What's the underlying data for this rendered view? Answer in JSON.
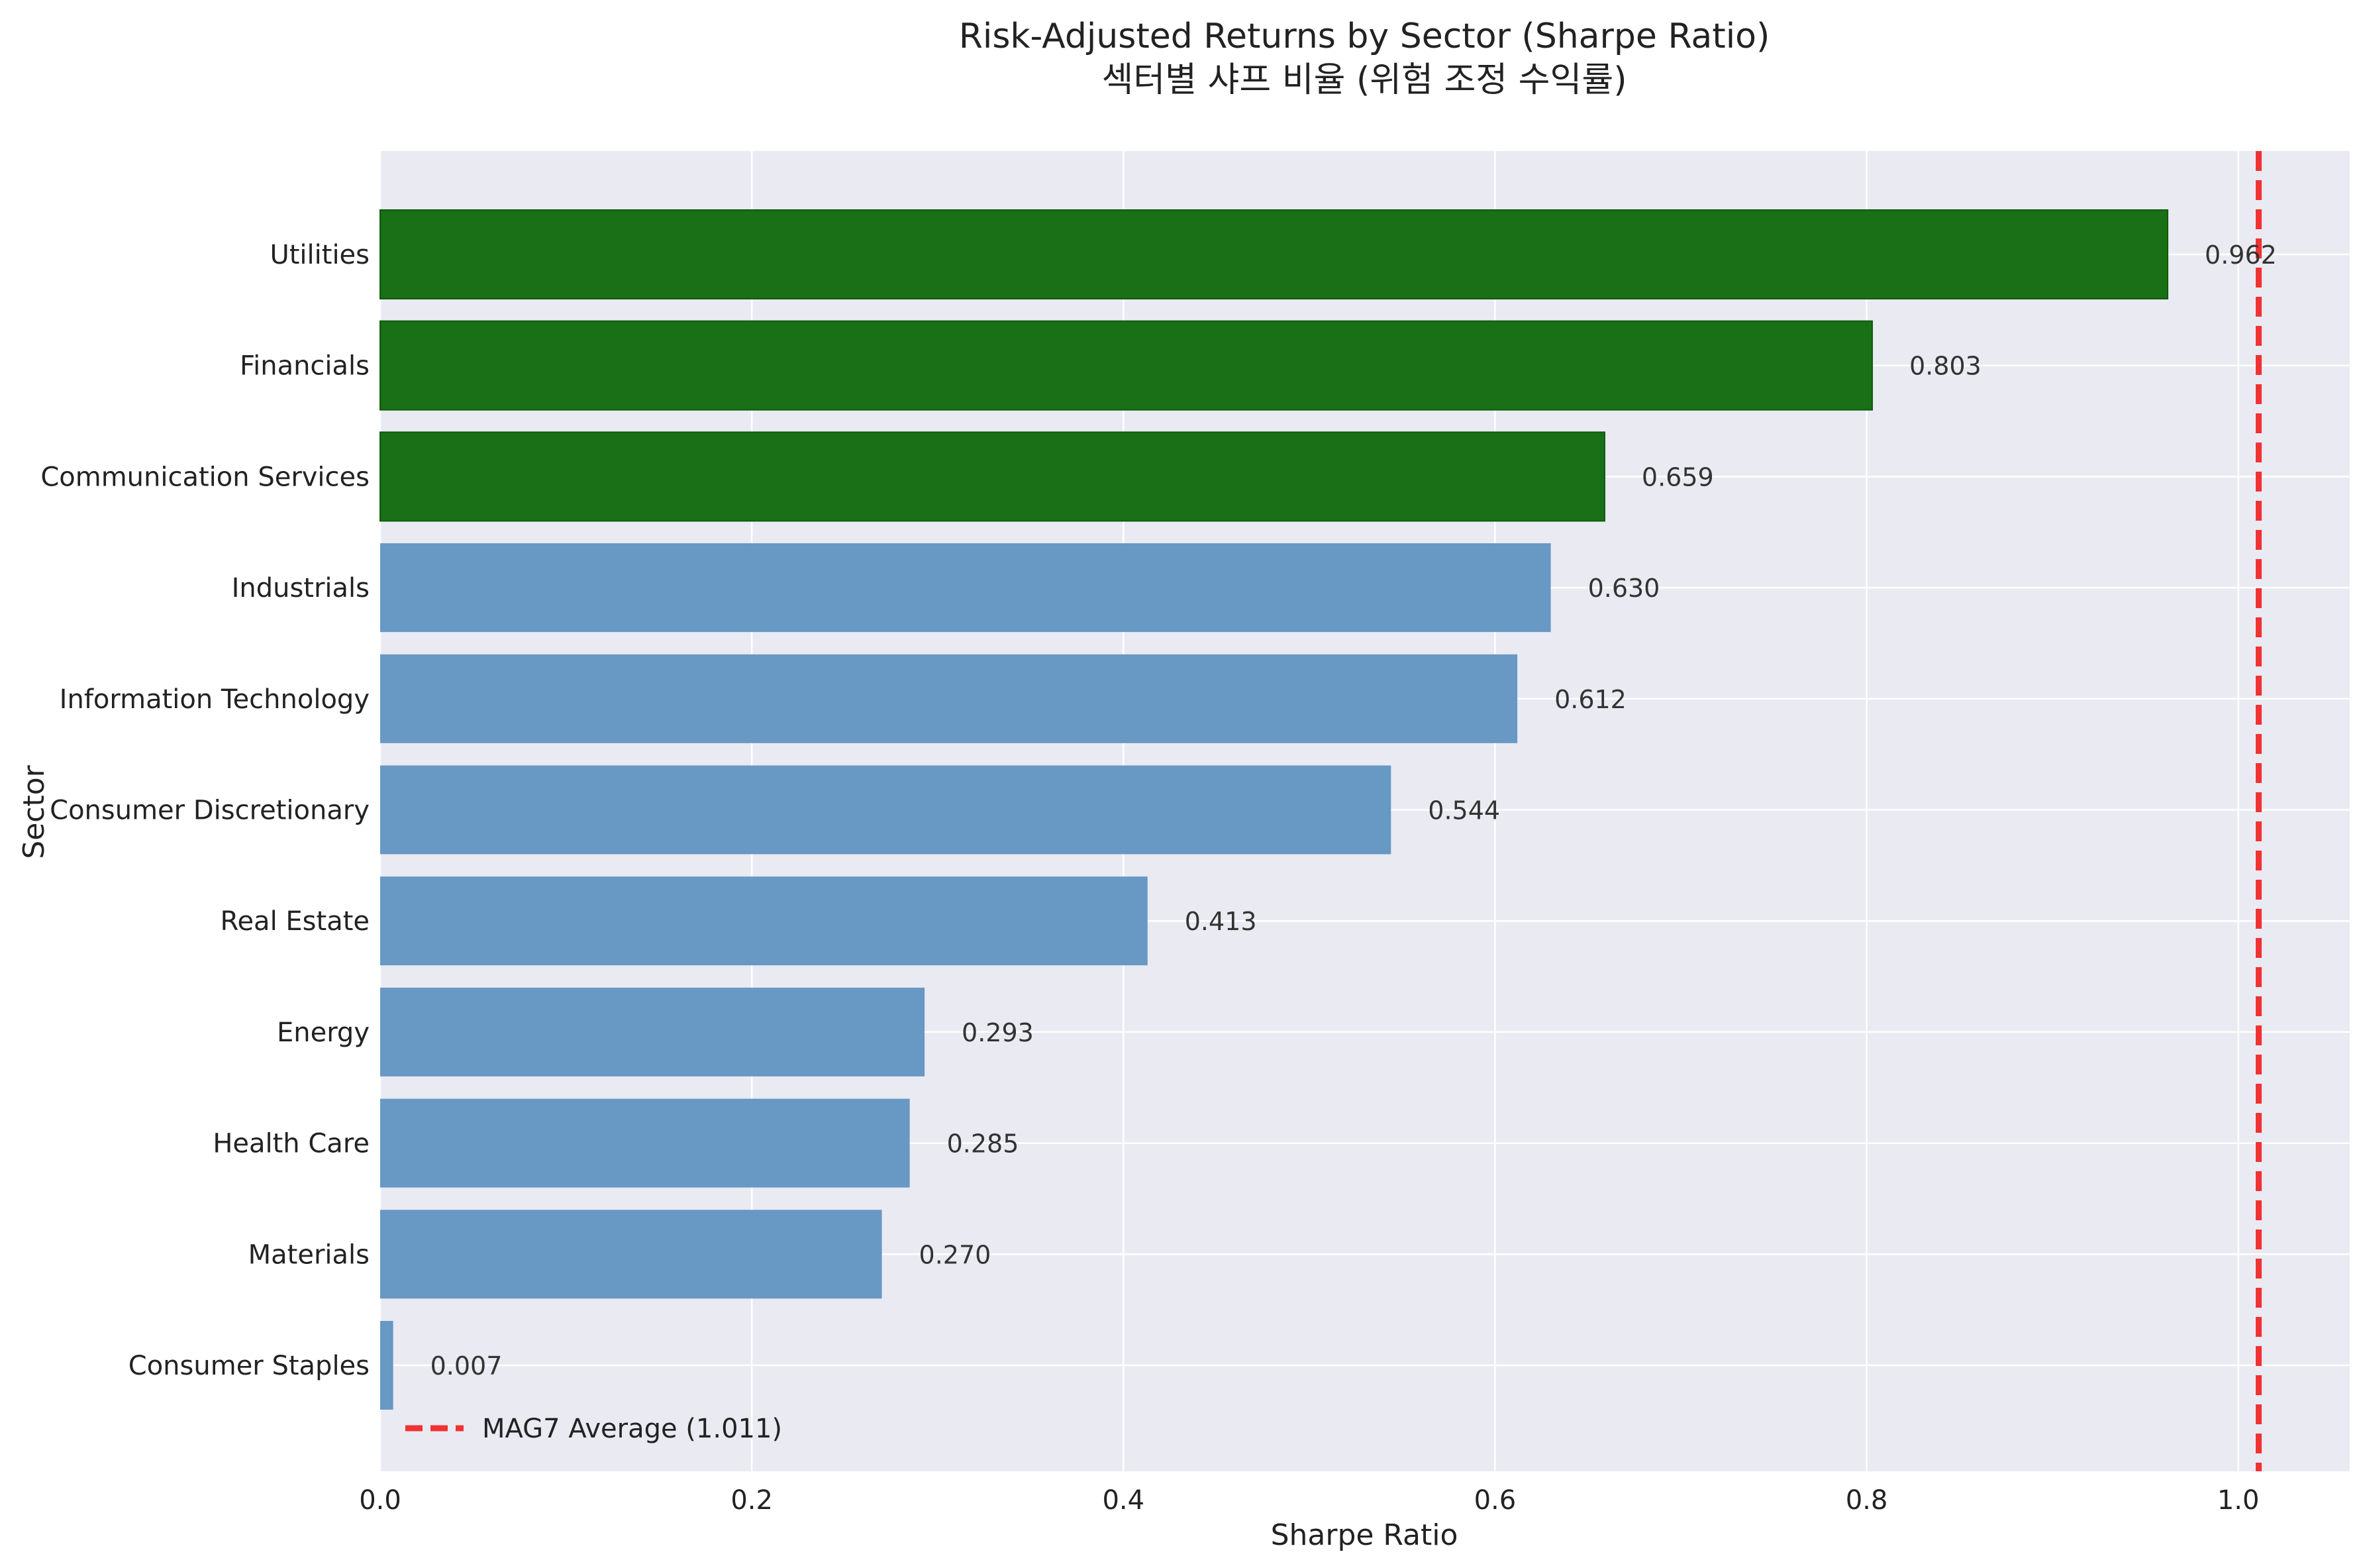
{
  "chart_data": {
    "type": "bar",
    "orientation": "horizontal",
    "title": "Risk-Adjusted Returns by Sector (Sharpe Ratio)",
    "subtitle": "섹터별 샤프 비율 (위험 조정 수익률)",
    "xlabel": "Sharpe Ratio",
    "ylabel": "Sector",
    "xlim": [
      0,
      1.06
    ],
    "xticks": [
      "0.0",
      "0.2",
      "0.4",
      "0.6",
      "0.8",
      "1.0"
    ],
    "grid": true,
    "legend_position": "bottom-left",
    "categories": [
      "Utilities",
      "Financials",
      "Communication Services",
      "Industrials",
      "Information Technology",
      "Consumer Discretionary",
      "Real Estate",
      "Energy",
      "Health Care",
      "Materials",
      "Consumer Staples"
    ],
    "values": [
      0.962,
      0.803,
      0.659,
      0.63,
      0.612,
      0.544,
      0.413,
      0.293,
      0.285,
      0.27,
      0.007
    ],
    "value_labels": [
      "0.962",
      "0.803",
      "0.659",
      "0.630",
      "0.612",
      "0.544",
      "0.413",
      "0.293",
      "0.285",
      "0.270",
      "0.007"
    ],
    "highlight_top_n": 3,
    "colors": {
      "highlight": "#1a7016",
      "default": "#6898c4",
      "reference_line": "#f03232",
      "plot_background": "#eaeaf2",
      "grid": "#ffffff"
    },
    "reference_line": {
      "value": 1.011,
      "label": "MAG7 Average (1.011)",
      "style": "dashed"
    }
  }
}
